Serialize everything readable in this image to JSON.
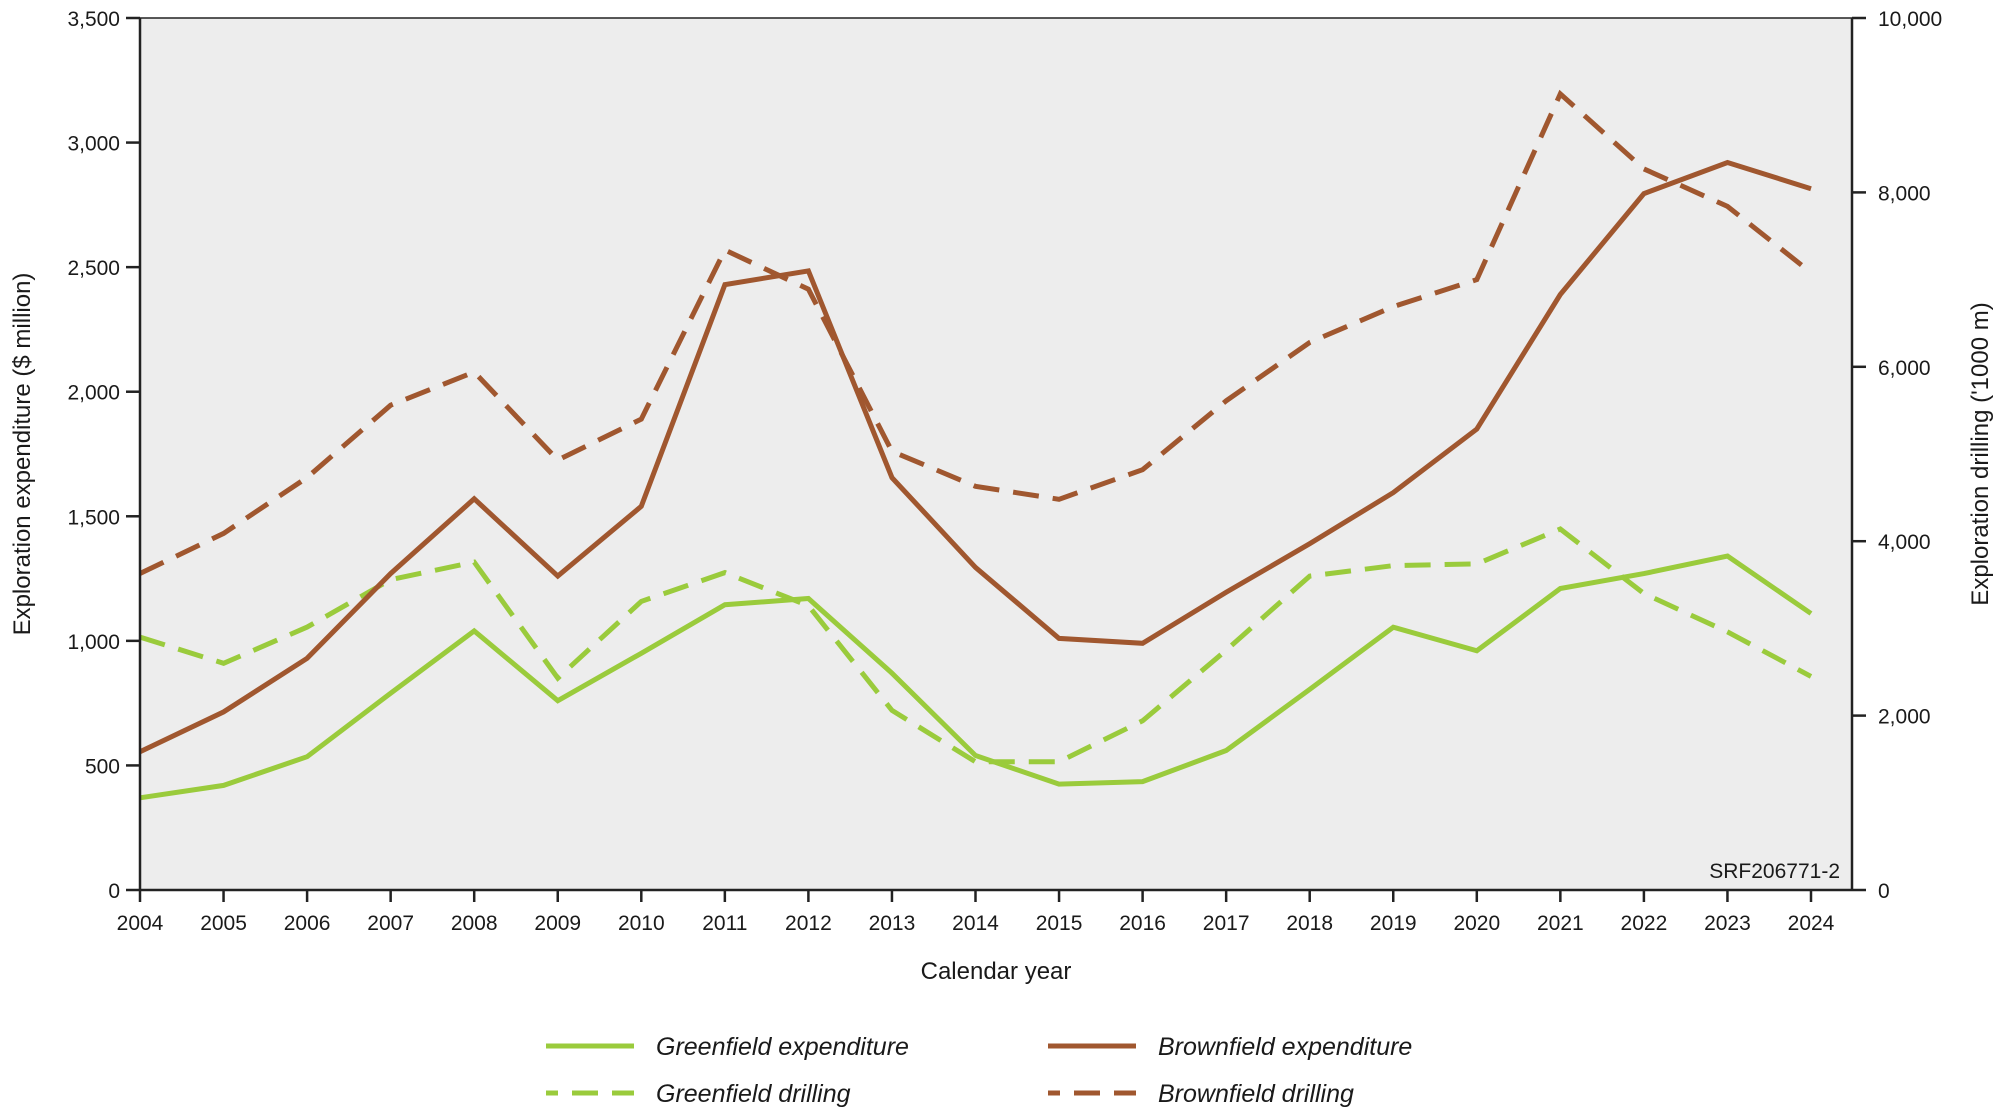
{
  "chart_data": {
    "type": "line",
    "xlabel": "Calendar year",
    "ylabel": "Exploration expenditure ($ million)",
    "y2label": "Exploration drilling ('1000 m)",
    "ylim": [
      0,
      3500
    ],
    "y2lim": [
      0,
      10000
    ],
    "yticks": [
      0,
      500,
      1000,
      1500,
      2000,
      2500,
      3000,
      3500
    ],
    "y2ticks": [
      0,
      2000,
      4000,
      6000,
      8000,
      10000
    ],
    "x": [
      2004,
      2005,
      2006,
      2007,
      2008,
      2009,
      2010,
      2011,
      2012,
      2013,
      2014,
      2015,
      2016,
      2017,
      2018,
      2019,
      2020,
      2021,
      2022,
      2023,
      2024
    ],
    "grid": false,
    "legend_placement": "bottom",
    "annotation": "SRF206771-2",
    "series": [
      {
        "name": "Greenfield expenditure",
        "axis": "left",
        "style": "solid",
        "color": "#9acb3c",
        "values": [
          370,
          420,
          535,
          790,
          1040,
          760,
          950,
          1145,
          1170,
          870,
          540,
          425,
          435,
          560,
          805,
          1055,
          960,
          1210,
          1270,
          1340,
          1110
        ]
      },
      {
        "name": "Brownfield expenditure",
        "axis": "left",
        "style": "solid",
        "color": "#a0572f",
        "values": [
          555,
          715,
          930,
          1270,
          1570,
          1260,
          1540,
          2430,
          2485,
          1655,
          1295,
          1010,
          990,
          1195,
          1390,
          1595,
          1850,
          2390,
          2795,
          2920,
          2815
        ]
      },
      {
        "name": "Greenfield drilling",
        "axis": "right",
        "style": "dashed",
        "color": "#9acb3c",
        "values": [
          2900,
          2600,
          3015,
          3560,
          3760,
          2430,
          3310,
          3640,
          3260,
          2060,
          1470,
          1470,
          1940,
          2750,
          3600,
          3720,
          3740,
          4140,
          3400,
          2960,
          2450
        ]
      },
      {
        "name": "Brownfield drilling",
        "axis": "right",
        "style": "dashed",
        "color": "#a0572f",
        "values": [
          3630,
          4090,
          4730,
          5560,
          5940,
          4930,
          5400,
          7340,
          6890,
          5030,
          4630,
          4480,
          4820,
          5610,
          6280,
          6690,
          7000,
          9130,
          8270,
          7840,
          7080
        ]
      }
    ],
    "plot_background": "#ededed"
  }
}
